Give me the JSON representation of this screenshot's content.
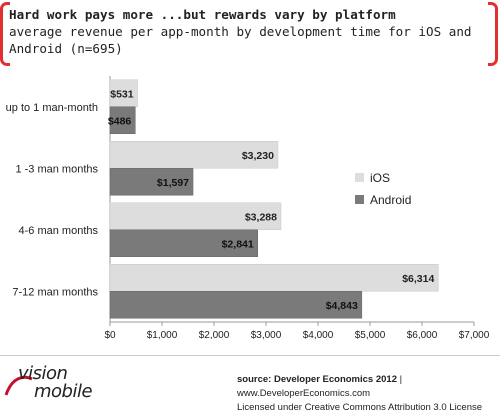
{
  "title": "Hard work pays more ...but rewards vary by platform",
  "subtitle": "average revenue per app-month by development time for iOS and Android (n=695)",
  "colors": {
    "ios": "#dddddd",
    "android": "#7a7a7a",
    "bracket": "#e03030"
  },
  "chart_data": {
    "type": "bar",
    "orientation": "horizontal",
    "categories": [
      "up to 1 man-month",
      "1 -3 man months",
      "4-6 man months",
      "7-12 man months"
    ],
    "series": [
      {
        "name": "iOS",
        "values": [
          531,
          3230,
          3288,
          6314
        ],
        "labels": [
          "$531",
          "$3,230",
          "$3,288",
          "$6,314"
        ]
      },
      {
        "name": "Android",
        "values": [
          486,
          1597,
          2841,
          4843
        ],
        "labels": [
          "$486",
          "$1,597",
          "$2,841",
          "$4,843"
        ]
      }
    ],
    "xlim": [
      0,
      7000
    ],
    "xticks": [
      0,
      1000,
      2000,
      3000,
      4000,
      5000,
      6000,
      7000
    ],
    "xtick_labels": [
      "$0",
      "$1,000",
      "$2,000",
      "$3,000",
      "$4,000",
      "$5,000",
      "$6,000",
      "$7,000"
    ],
    "legend": {
      "placement": "right",
      "entries": [
        "iOS",
        "Android"
      ]
    },
    "grid": false
  },
  "footer": {
    "source_label": "source: Developer Economics 2012",
    "source_url": "www.DeveloperEconomics.com",
    "license": "Licensed under Creative Commons Attribution 3.0 License",
    "logo_top": "vision",
    "logo_bottom": "mobile"
  }
}
